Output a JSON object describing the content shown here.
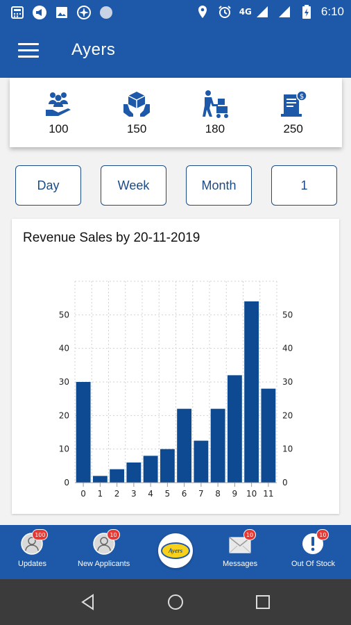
{
  "status_bar": {
    "network": "4G",
    "time": "6:10"
  },
  "app_bar": {
    "title": "Ayers"
  },
  "stats": [
    {
      "icon": "people-hand-icon",
      "value": "100"
    },
    {
      "icon": "package-hands-icon",
      "value": "150"
    },
    {
      "icon": "delivery-worker-icon",
      "value": "180"
    },
    {
      "icon": "invoice-dollar-icon",
      "value": "250"
    }
  ],
  "filters": [
    {
      "label": "Day"
    },
    {
      "label": "Week"
    },
    {
      "label": "Month"
    },
    {
      "label": "1"
    }
  ],
  "chart_title": "Revenue Sales by 20-11-2019",
  "chart_data": {
    "type": "bar",
    "title": "Revenue Sales by 20-11-2019",
    "categories": [
      "0",
      "1",
      "2",
      "3",
      "4",
      "5",
      "6",
      "7",
      "8",
      "9",
      "10",
      "11"
    ],
    "values": [
      30,
      2,
      4,
      6,
      8,
      10,
      22,
      12.5,
      22,
      32,
      54,
      28
    ],
    "ylim": [
      0,
      60
    ],
    "yticks": [
      "0",
      "10",
      "20",
      "30",
      "40",
      "50"
    ],
    "grid": true,
    "bar_color": "#0d4a91",
    "legend": "none"
  },
  "bottom_nav": {
    "updates": {
      "label": "Updates",
      "badge": "100"
    },
    "applicants": {
      "label": "New Applicants",
      "badge": "10"
    },
    "logo_text": "Ayers",
    "messages": {
      "label": "Messages",
      "badge": "10"
    },
    "out_of_stock": {
      "label": "Out Of Stock",
      "badge": "10"
    }
  },
  "colors": {
    "primary": "#1e58a8",
    "accent_dark": "#1b4b85",
    "badge": "#e53935"
  }
}
